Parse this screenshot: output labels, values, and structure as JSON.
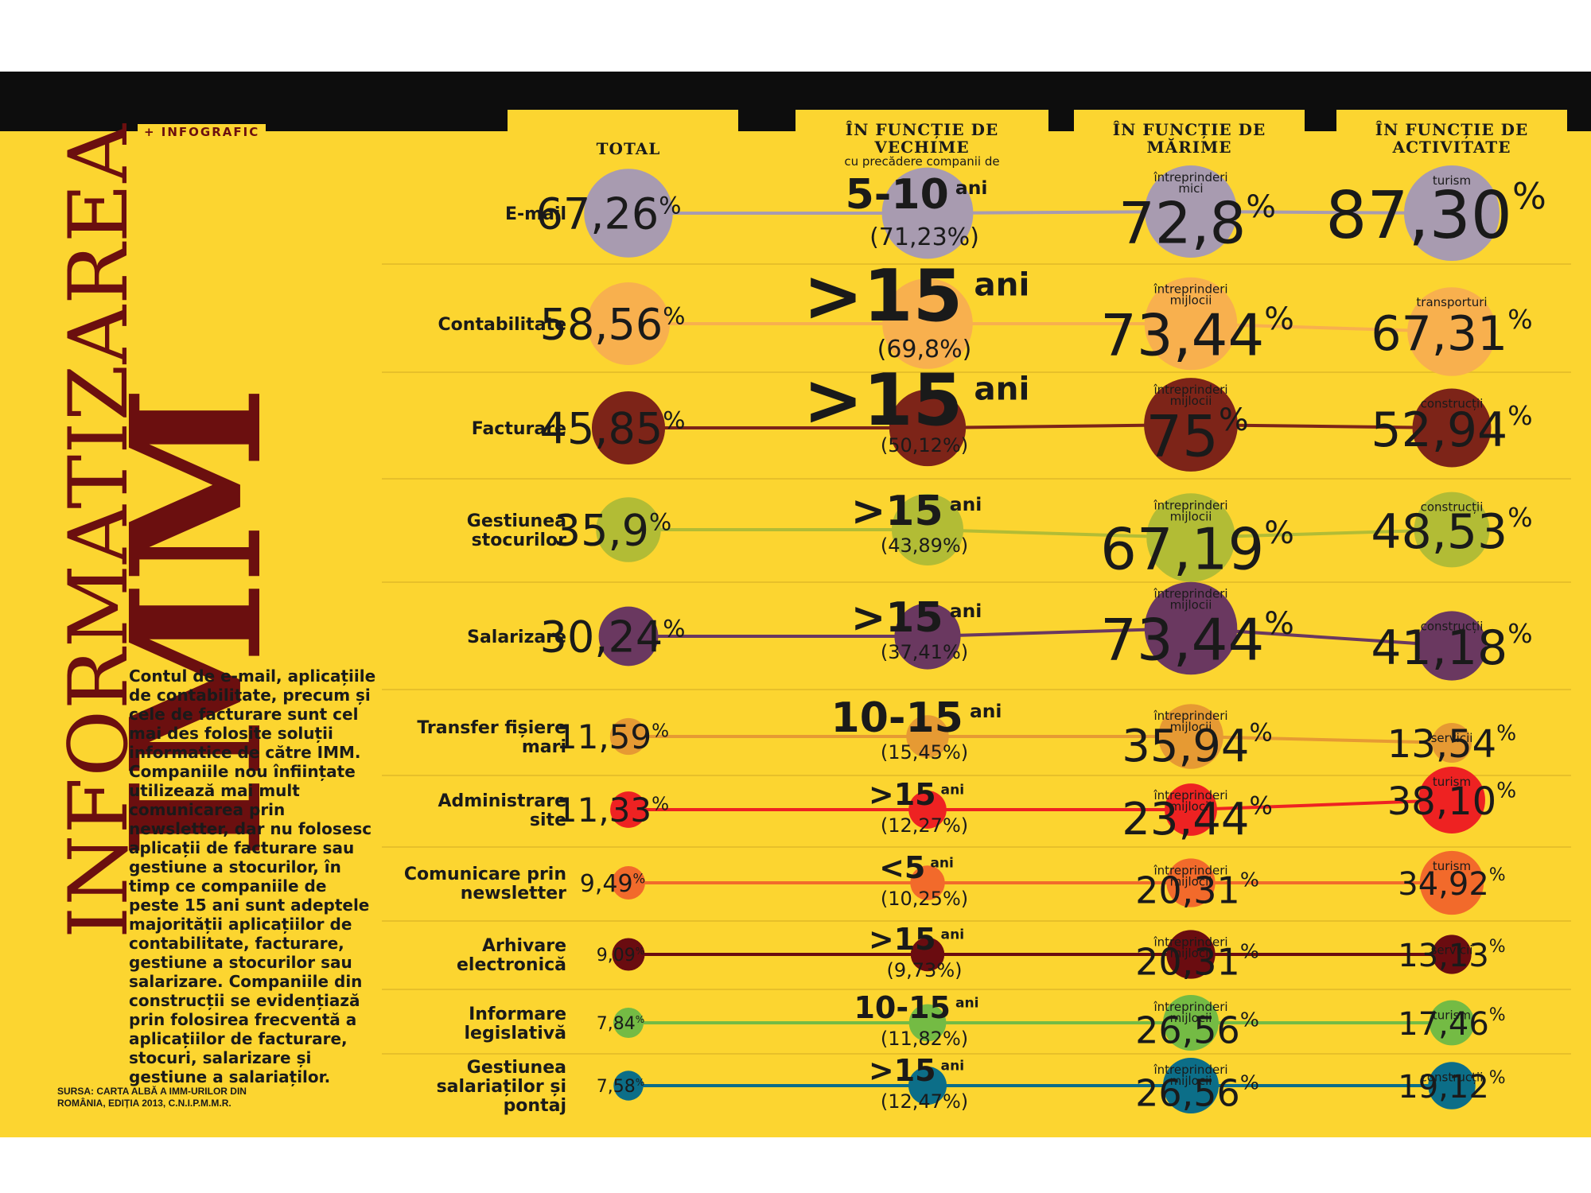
{
  "header": {
    "tag": "+ INFOGRAFIC",
    "columns": [
      {
        "title": "TOTAL",
        "subtitle": ""
      },
      {
        "title": "ÎN FUNCȚIE DE VECHIME",
        "subtitle": "cu precădere companii de"
      },
      {
        "title": "ÎN FUNCȚIE DE MĂRIME",
        "subtitle": ""
      },
      {
        "title": "ÎN FUNCȚIE DE ACTIVITATE",
        "subtitle": ""
      }
    ]
  },
  "title": {
    "line1": "INFORMATIZAREA",
    "line2": "IMM"
  },
  "body_text": "Contul de e-mail, aplicațiile de contabilitate, precum și cele de facturare sunt cel mai des folosite soluții informatice de către IMM. Companiile nou înființate utilizează mai mult comunicarea prin newsletter, dar nu folosesc aplicații de facturare sau gestiune a stocurilor, în timp ce companiile de peste 15 ani sunt adeptele majorității aplicațiilor de contabilitate, facturare, gestiune a stocurilor sau salarizare. Companiile din construcții se evidențiază prin folosirea frecventă a aplicațiilor de facturare, stocuri, salarizare și gestiune a salariaților.",
  "source": "SURSA: CARTA ALBĂ A IMM-URILOR DIN ROMÂNIA, EDIȚIA 2013, C.N.I.P.M.M.R.",
  "chart_data": {
    "type": "bubble-slope",
    "series_columns": [
      "TOTAL",
      "ÎN FUNCȚIE DE VECHIME",
      "ÎN FUNCȚIE DE MĂRIME",
      "ÎN FUNCȚIE DE ACTIVITATE"
    ],
    "rows": [
      {
        "category": "E-mail",
        "color": "#a89bb0",
        "total": 67.26,
        "total_label": "67,26",
        "age": "5-10",
        "age_label": "(71,23%)",
        "age_value": 71.23,
        "size": "întreprinderi mici",
        "size_value": 72.8,
        "size_label": "72,8",
        "activity": "turism",
        "activity_value": 87.3,
        "activity_label": "87,30"
      },
      {
        "category": "Contabilitate",
        "color": "#f8b04e",
        "total": 58.56,
        "total_label": "58,56",
        "age": ">15",
        "age_label": "(69,8%)",
        "age_value": 69.8,
        "size": "întreprinderi mijlocii",
        "size_value": 73.44,
        "size_label": "73,44",
        "activity": "transporturi",
        "activity_value": 67.31,
        "activity_label": "67,31"
      },
      {
        "category": "Facturare",
        "color": "#7d2418",
        "total": 45.85,
        "total_label": "45,85",
        "age": ">15",
        "age_label": "(50,12%)",
        "age_value": 50.12,
        "size": "întreprinderi mijlocii",
        "size_value": 75,
        "size_label": "75",
        "activity": "construcții",
        "activity_value": 52.94,
        "activity_label": "52,94"
      },
      {
        "category": "Gestiunea stocurilor",
        "color": "#b2bc35",
        "total": 35.9,
        "total_label": "35,9",
        "age": ">15",
        "age_label": "(43,89%)",
        "age_value": 43.89,
        "size": "întreprinderi mijlocii",
        "size_value": 67.19,
        "size_label": "67,19",
        "activity": "construcții",
        "activity_value": 48.53,
        "activity_label": "48,53"
      },
      {
        "category": "Salarizare",
        "color": "#6a3860",
        "total": 30.24,
        "total_label": "30,24",
        "age": ">15",
        "age_label": "(37,41%)",
        "age_value": 37.41,
        "size": "întreprinderi mijlocii",
        "size_value": 73.44,
        "size_label": "73,44",
        "activity": "construcții",
        "activity_value": 41.18,
        "activity_label": "41,18"
      },
      {
        "category": "Transfer fișiere mari",
        "color": "#e69a33",
        "total": 11.59,
        "total_label": "11,59",
        "age": "10-15",
        "age_label": "(15,45%)",
        "age_value": 15.45,
        "size": "întreprinderi mijlocii",
        "size_value": 35.94,
        "size_label": "35,94",
        "activity": "servicii",
        "activity_value": 13.54,
        "activity_label": "13,54"
      },
      {
        "category": "Administrare site",
        "color": "#ee2222",
        "total": 11.33,
        "total_label": "11,33",
        "age": ">15",
        "age_label": "(12,27%)",
        "age_value": 12.27,
        "size": "întreprinderi mijlocii",
        "size_value": 23.44,
        "size_label": "23,44",
        "activity": "turism",
        "activity_value": 38.1,
        "activity_label": "38,10"
      },
      {
        "category": "Comunicare prin newsletter",
        "color": "#f26a2b",
        "total": 9.49,
        "total_label": "9,49",
        "age": "<5",
        "age_label": "(10,25%)",
        "age_value": 10.25,
        "size": "întreprinderi mijlocii",
        "size_value": 20.31,
        "size_label": "20,31",
        "activity": "turism",
        "activity_value": 34.92,
        "activity_label": "34,92"
      },
      {
        "category": "Arhivare electronică",
        "color": "#6a0c10",
        "total": 9.09,
        "total_label": "9,09",
        "age": ">15",
        "age_label": "(9,73%)",
        "age_value": 9.73,
        "size": "întreprinderi mijlocii",
        "size_value": 20.31,
        "size_label": "20,31",
        "activity": "servicii",
        "activity_value": 13.13,
        "activity_label": "13,13"
      },
      {
        "category": "Informare legislativă",
        "color": "#74bb44",
        "total": 7.84,
        "total_label": "7,84",
        "age": "10-15",
        "age_label": "(11,82%)",
        "age_value": 11.82,
        "size": "întreprinderi mijlocii",
        "size_value": 26.56,
        "size_label": "26,56",
        "activity": "turism",
        "activity_value": 17.46,
        "activity_label": "17,46"
      },
      {
        "category": "Gestiunea salariaților și pontaj",
        "color": "#0c6e88",
        "total": 7.58,
        "total_label": "7,58",
        "age": ">15",
        "age_label": "(12,47%)",
        "age_value": 12.47,
        "size": "întreprinderi mijlocii",
        "size_value": 26.56,
        "size_label": "26,56",
        "activity": "construcții",
        "activity_value": 19.12,
        "activity_label": "19,12"
      }
    ],
    "age_unit": "ani",
    "percent_sign": "%"
  }
}
